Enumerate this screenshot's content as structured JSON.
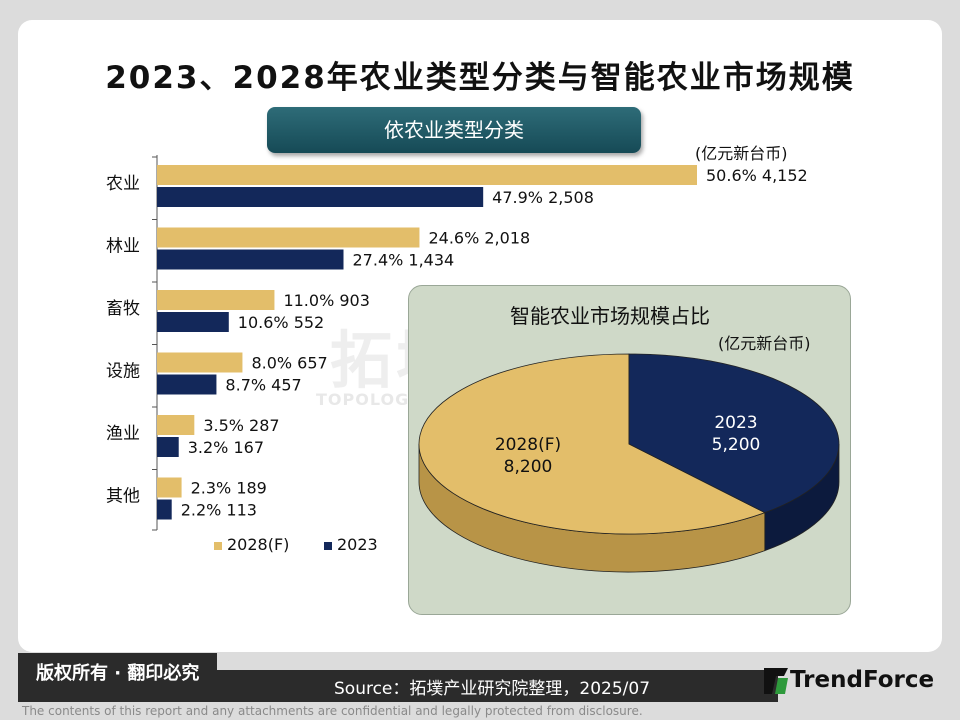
{
  "title": "2023、2028年农业类型分类与智能农业市场规模",
  "subtitle_pill": "依农业类型分类",
  "bar_unit": "(亿元新台币)",
  "pie_title": "智能农业市场规模占比",
  "pie_unit": "(亿元新台币)",
  "colors": {
    "s2028": "#e3be6a",
    "s2023": "#13285a",
    "pie2028_side": "#b89447",
    "pie2023_side": "#0c1a3d"
  },
  "chart_data": [
    {
      "type": "bar",
      "orientation": "horizontal",
      "categories": [
        "农业",
        "林业",
        "畜牧",
        "设施",
        "渔业",
        "其他"
      ],
      "series": [
        {
          "name": "2028(F)",
          "values": [
            4152,
            2018,
            903,
            657,
            287,
            189
          ],
          "shares": [
            "50.6%",
            "24.6%",
            "11.0%",
            "8.0%",
            "3.5%",
            "2.3%"
          ],
          "labels": [
            "4,152",
            "2,018",
            "903",
            "657",
            "287",
            "189"
          ]
        },
        {
          "name": "2023",
          "values": [
            2508,
            1434,
            552,
            457,
            167,
            113
          ],
          "shares": [
            "47.9%",
            "27.4%",
            "10.6%",
            "8.7%",
            "3.2%",
            "2.2%"
          ],
          "labels": [
            "2,508",
            "1,434",
            "552",
            "457",
            "167",
            "113"
          ]
        }
      ],
      "legend_position": "bottom"
    },
    {
      "type": "pie",
      "slices": [
        {
          "label": "2023",
          "value": 5200,
          "value_label": "5,200"
        },
        {
          "label": "2028(F)",
          "value": 8200,
          "value_label": "8,200"
        }
      ]
    }
  ],
  "footer": {
    "copyright": "版权所有 · 翻印必究",
    "source": "Source：拓墣产业研究院整理，2025/07",
    "brand": "TrendForce",
    "disclaimer": "The contents of this report and any attachments are confidential and legally protected from disclosure."
  },
  "watermark": {
    "main": "拓墣 TRI",
    "sub": "TOPOLOGY RESEARCH INSTITUTE"
  }
}
